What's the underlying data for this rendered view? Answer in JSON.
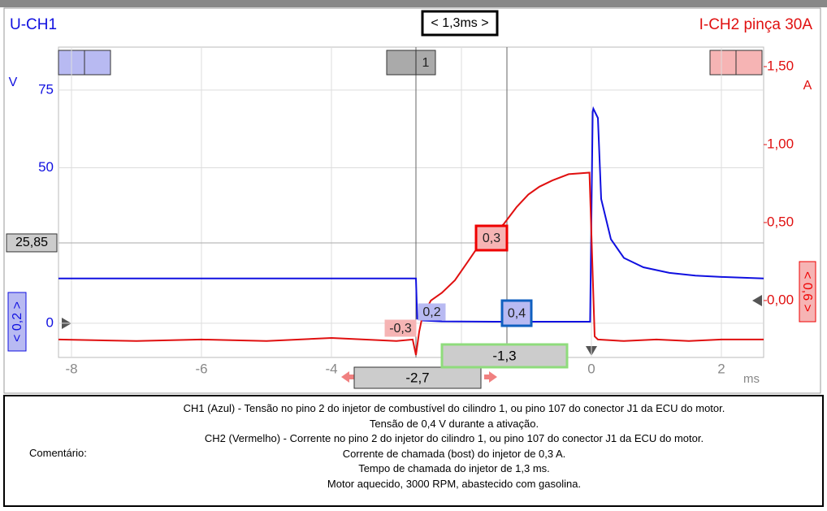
{
  "chart_data": {
    "type": "line",
    "timebase": "< 1,3ms >",
    "y_unit": "V",
    "y2_unit": "A",
    "x_unit": "ms",
    "xlim": [
      -8.2,
      2.65
    ],
    "xticks": [
      -8,
      -6,
      -4,
      -2,
      0,
      2
    ],
    "ylim": [
      -11,
      88.8
    ],
    "yticks": [
      0,
      50,
      75
    ],
    "y2lim": [
      -0.365,
      1.625
    ],
    "y2ticks": [
      {
        "value": 0,
        "label": "0,00"
      },
      {
        "value": 0.5,
        "label": "0,50"
      },
      {
        "value": 1,
        "label": "1,00"
      },
      {
        "value": 1.5,
        "label": "1,50"
      }
    ],
    "grid": true,
    "hcursor": {
      "value": 25.85,
      "label": "25,85"
    },
    "cursors": [
      {
        "value": -2.7,
        "label": "-2,7"
      },
      {
        "value": -1.3,
        "label": "-1,3"
      }
    ],
    "annotations": [
      "1",
      "0,3",
      "0,4",
      "0,2",
      "-0,3",
      "< 0,2 >",
      "< 0,6 >"
    ],
    "series": [
      {
        "name": "U-CH1",
        "color": "#1010e0",
        "x": [
          -8.2,
          -2.7,
          -2.68,
          -2.6,
          -2.3,
          -1.5,
          -0.02,
          0.02,
          0.03,
          0.1,
          0.15,
          0.3,
          0.5,
          0.8,
          1.2,
          1.6,
          2.0,
          2.65
        ],
        "values": [
          14.4,
          14.4,
          1.5,
          0.9,
          0.6,
          0.5,
          0.5,
          68,
          69,
          66,
          40,
          27,
          21,
          18,
          16.2,
          15.3,
          14.9,
          14.4
        ]
      },
      {
        "name": "I-CH2 pinça 30A",
        "color": "#e01010",
        "axis": "y2",
        "x": [
          -8.2,
          -7,
          -6,
          -5,
          -4,
          -3,
          -2.75,
          -2.7,
          -2.65,
          -2.6,
          -2.47,
          -2.3,
          -2.1,
          -1.9,
          -1.72,
          -1.5,
          -1.35,
          -1.15,
          -0.97,
          -0.8,
          -0.6,
          -0.35,
          -0.03,
          0.05,
          0.1,
          0.5,
          1,
          1.5,
          2,
          2.65
        ],
        "values": [
          -0.25,
          -0.26,
          -0.25,
          -0.26,
          -0.24,
          -0.26,
          -0.25,
          -0.35,
          -0.2,
          -0.1,
          0,
          0.05,
          0.13,
          0.25,
          0.36,
          0.44,
          0.49,
          0.6,
          0.68,
          0.73,
          0.77,
          0.81,
          0.82,
          -0.23,
          -0.25,
          -0.26,
          -0.25,
          -0.26,
          -0.25,
          -0.25
        ]
      }
    ]
  },
  "comment": {
    "label": "Comentário:",
    "lines": [
      "CH1 (Azul) - Tensão no pino 2 do injetor de combustível do cilindro 1, ou pino 107 do conector J1 da ECU do motor.",
      "Tensão de 0,4 V durante a ativação.",
      "CH2 (Vermelho) - Corrente no pino 2 do injetor do cilindro 1, ou pino 107 do conector J1 da ECU do motor.",
      "Corrente de chamada (bost) do injetor de 0,3 A.",
      "Tempo de chamada do injetor de 1,3 ms.",
      "Motor aquecido, 3000 RPM, abastecido com gasolina."
    ]
  }
}
